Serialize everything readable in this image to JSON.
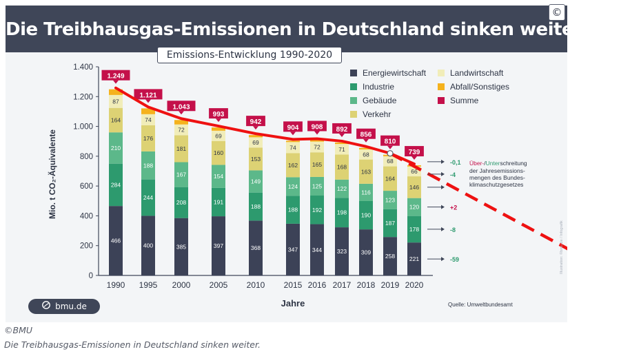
{
  "header": {
    "title": "Die Treibhausgas-Emissionen in Deutschland sinken weiter"
  },
  "copyright_symbol": "©",
  "brand": {
    "label": "bmu.de"
  },
  "caption": {
    "credit": "©BMU",
    "text": "Die Treibhausgas-Emissionen in Deutschland sinken weiter."
  },
  "colors": {
    "header": "#3f4658",
    "energie": "#3c4257",
    "industrie": "#2d9a6e",
    "gebaeude": "#5cb88a",
    "verkehr": "#ddd274",
    "landwirtschaft": "#f1edb9",
    "abfall": "#f5b21d",
    "summe": "#c4104a",
    "trend": "#ee1111"
  },
  "chart_data": {
    "type": "bar",
    "stacked": true,
    "title": "Emissions-Entwicklung 1990-2020",
    "xlabel": "Jahre",
    "ylabel": "Mio. t CO₂-Äquivalente",
    "ylim": [
      0,
      1400
    ],
    "yticks": [
      0,
      200,
      400,
      600,
      800,
      1000,
      1200,
      1400
    ],
    "ytick_labels": [
      "0",
      "200",
      "400",
      "600",
      "800",
      "1.000",
      "1.200",
      "1.400"
    ],
    "categories": [
      "1990",
      "1995",
      "2000",
      "2005",
      "2010",
      "2015",
      "2016",
      "2017",
      "2018",
      "2019",
      "2020"
    ],
    "series": [
      {
        "name": "Energiewirtschaft",
        "color_key": "energie",
        "label_color": "#ffffff",
        "values": [
          466,
          400,
          385,
          397,
          368,
          347,
          344,
          323,
          309,
          258,
          221
        ]
      },
      {
        "name": "Industrie",
        "color_key": "industrie",
        "label_color": "#ffffff",
        "values": [
          284,
          244,
          208,
          191,
          188,
          188,
          192,
          198,
          190,
          187,
          178
        ]
      },
      {
        "name": "Gebäude",
        "color_key": "gebaeude",
        "label_color": "#ffffff",
        "values": [
          210,
          188,
          167,
          154,
          149,
          124,
          125,
          122,
          116,
          123,
          120
        ]
      },
      {
        "name": "Verkehr",
        "color_key": "verkehr",
        "label_color": "#2d3444",
        "values": [
          164,
          176,
          181,
          160,
          153,
          162,
          165,
          168,
          163,
          164,
          146
        ]
      },
      {
        "name": "Landwirtschaft",
        "color_key": "landwirtschaft",
        "label_color": "#2d3444",
        "values": [
          87,
          74,
          72,
          69,
          69,
          74,
          72,
          71,
          68,
          68,
          66
        ]
      },
      {
        "name": "Abfall/Sonstiges",
        "color_key": "abfall",
        "label_color": "#2d3444",
        "values": [
          38,
          39,
          30,
          22,
          15,
          9,
          10,
          10,
          10,
          10,
          8
        ]
      }
    ],
    "totals": {
      "name": "Summe",
      "color_key": "summe",
      "values": [
        1249,
        1121,
        1043,
        993,
        942,
        904,
        908,
        892,
        856,
        810,
        739
      ],
      "labels": [
        "1.249",
        "1.121",
        "1.043",
        "993",
        "942",
        "904",
        "908",
        "892",
        "856",
        "810",
        "739"
      ]
    },
    "legend": [
      {
        "label": "Energiewirtschaft",
        "color_key": "energie"
      },
      {
        "label": "Industrie",
        "color_key": "industrie"
      },
      {
        "label": "Gebäude",
        "color_key": "gebaeude"
      },
      {
        "label": "Verkehr",
        "color_key": "verkehr"
      },
      {
        "label": "Landwirtschaft",
        "color_key": "landwirtschaft"
      },
      {
        "label": "Abfall/Sonstiges",
        "color_key": "abfall"
      },
      {
        "label": "Summe",
        "color_key": "summe"
      }
    ],
    "target_deviation": {
      "title_parts": [
        "Über-",
        "/",
        "Unter",
        "schreitung"
      ],
      "title_lines": [
        "der Jahresemissions-",
        "mengen des Bundes-",
        "klimaschutzgesetzes"
      ],
      "items": [
        {
          "sector": "Abfall/Sonstiges",
          "value": "-0,1",
          "color": "#2d9a6e"
        },
        {
          "sector": "Landwirtschaft",
          "value": "-4",
          "color": "#2d9a6e"
        },
        {
          "sector": "Verkehr",
          "value": "",
          "color": "#2d9a6e"
        },
        {
          "sector": "Gebäude",
          "value": "+2",
          "color": "#c4104a"
        },
        {
          "sector": "Industrie",
          "value": "-8",
          "color": "#2d9a6e"
        },
        {
          "sector": "Energiewirtschaft",
          "value": "-59",
          "color": "#2d9a6e"
        }
      ]
    },
    "source": "Quelle: Umweltbundesamt",
    "side_credit": "Illustration: ©bmu.de / Infografik"
  }
}
